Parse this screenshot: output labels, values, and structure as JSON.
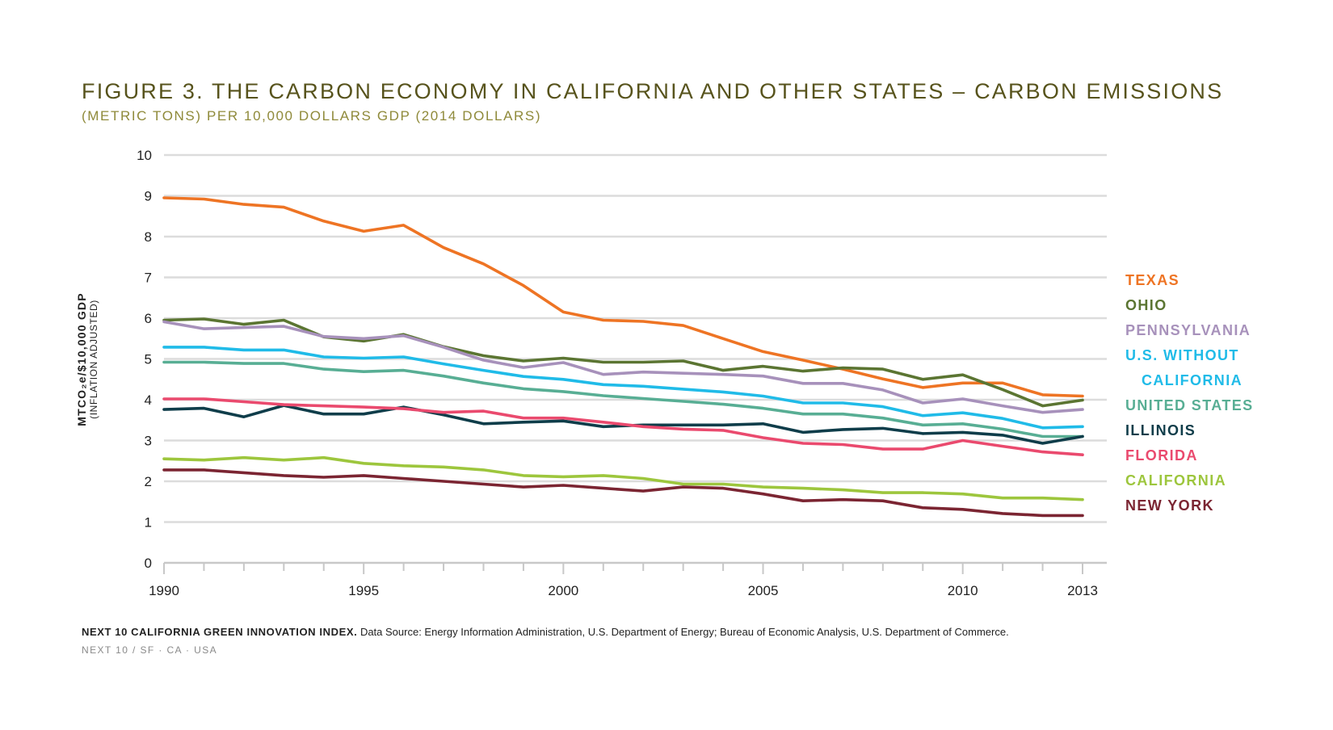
{
  "header": {
    "title": "FIGURE 3. THE CARBON ECONOMY IN CALIFORNIA AND OTHER STATES – CARBON EMISSIONS",
    "subtitle": "(METRIC TONS) PER 10,000 DOLLARS GDP (2014 DOLLARS)"
  },
  "axis": {
    "ylabel_main": "MTCO₂e/$10,000 GDP",
    "ylabel_sub": "(INFLATION ADJUSTED)"
  },
  "footer": {
    "source_bold": "NEXT 10 CALIFORNIA GREEN INNOVATION INDEX.",
    "source_text": " Data Source: Energy Information Administration, U.S. Department of Energy; Bureau of Economic Analysis, U.S. Department of Commerce.",
    "credit": "NEXT 10  /  SF · CA · USA"
  },
  "chart_data": {
    "type": "line",
    "x": [
      1990,
      1991,
      1992,
      1993,
      1994,
      1995,
      1996,
      1997,
      1998,
      1999,
      2000,
      2001,
      2002,
      2003,
      2004,
      2005,
      2006,
      2007,
      2008,
      2009,
      2010,
      2011,
      2012,
      2013
    ],
    "x_tick_labels": [
      "1990",
      "1995",
      "2000",
      "2005",
      "2010",
      "2013"
    ],
    "x_tick_values": [
      1990,
      1995,
      2000,
      2005,
      2010,
      2013
    ],
    "y_tick_labels": [
      "0",
      "1",
      "2",
      "3",
      "4",
      "5",
      "6",
      "7",
      "8",
      "9",
      "10"
    ],
    "ylim": [
      0,
      10
    ],
    "xlim": [
      1990,
      2013
    ],
    "grid": true,
    "legend_placement": "right",
    "series": [
      {
        "name": "TEXAS",
        "color": "#ee7424",
        "values": [
          8.95,
          8.92,
          8.79,
          8.72,
          8.38,
          8.13,
          8.28,
          7.73,
          7.33,
          6.8,
          6.15,
          5.95,
          5.92,
          5.82,
          5.5,
          5.18,
          4.97,
          4.75,
          4.51,
          4.3,
          4.41,
          4.41,
          4.12,
          4.09
        ]
      },
      {
        "name": "OHIO",
        "color": "#5b7532",
        "values": [
          5.95,
          5.98,
          5.85,
          5.95,
          5.54,
          5.44,
          5.6,
          5.3,
          5.08,
          4.95,
          5.02,
          4.92,
          4.92,
          4.95,
          4.72,
          4.82,
          4.7,
          4.78,
          4.75,
          4.5,
          4.61,
          4.25,
          3.85,
          3.99
        ]
      },
      {
        "name": "PENNSYLVANIA",
        "color": "#a791bb",
        "values": [
          5.91,
          5.74,
          5.77,
          5.8,
          5.55,
          5.5,
          5.57,
          5.29,
          4.97,
          4.79,
          4.91,
          4.62,
          4.68,
          4.65,
          4.62,
          4.58,
          4.4,
          4.4,
          4.24,
          3.92,
          4.02,
          3.85,
          3.69,
          3.76
        ]
      },
      {
        "name": "U.S. WITHOUT",
        "name2": "CALIFORNIA",
        "color": "#20bbe8",
        "values": [
          5.29,
          5.29,
          5.22,
          5.22,
          5.05,
          5.02,
          5.05,
          4.88,
          4.72,
          4.57,
          4.5,
          4.37,
          4.33,
          4.26,
          4.19,
          4.09,
          3.92,
          3.92,
          3.83,
          3.61,
          3.68,
          3.54,
          3.31,
          3.34
        ]
      },
      {
        "name": "UNITED STATES",
        "color": "#58ae94",
        "values": [
          4.92,
          4.92,
          4.89,
          4.89,
          4.75,
          4.69,
          4.72,
          4.58,
          4.41,
          4.27,
          4.2,
          4.1,
          4.03,
          3.96,
          3.89,
          3.79,
          3.65,
          3.65,
          3.55,
          3.38,
          3.41,
          3.28,
          3.1,
          3.1
        ]
      },
      {
        "name": "ILLINOIS",
        "color": "#0f3d4a",
        "values": [
          3.76,
          3.79,
          3.58,
          3.86,
          3.65,
          3.65,
          3.82,
          3.63,
          3.41,
          3.45,
          3.48,
          3.34,
          3.38,
          3.38,
          3.38,
          3.41,
          3.2,
          3.27,
          3.3,
          3.17,
          3.2,
          3.13,
          2.93,
          3.1
        ]
      },
      {
        "name": "FLORIDA",
        "color": "#ea4a6e",
        "values": [
          4.02,
          4.02,
          3.95,
          3.88,
          3.85,
          3.82,
          3.78,
          3.69,
          3.72,
          3.55,
          3.55,
          3.45,
          3.34,
          3.28,
          3.25,
          3.07,
          2.93,
          2.9,
          2.79,
          2.79,
          3.0,
          2.86,
          2.72,
          2.65
        ]
      },
      {
        "name": "CALIFORNIA",
        "color": "#9dc63d",
        "values": [
          2.55,
          2.52,
          2.58,
          2.52,
          2.58,
          2.44,
          2.38,
          2.35,
          2.28,
          2.14,
          2.11,
          2.14,
          2.07,
          1.93,
          1.93,
          1.86,
          1.83,
          1.79,
          1.72,
          1.72,
          1.69,
          1.59,
          1.59,
          1.55
        ]
      },
      {
        "name": "NEW YORK",
        "color": "#7b2532",
        "values": [
          2.28,
          2.28,
          2.21,
          2.14,
          2.1,
          2.14,
          2.07,
          2.0,
          1.93,
          1.86,
          1.9,
          1.83,
          1.76,
          1.86,
          1.83,
          1.69,
          1.52,
          1.55,
          1.52,
          1.35,
          1.31,
          1.21,
          1.16,
          1.16
        ]
      }
    ]
  }
}
